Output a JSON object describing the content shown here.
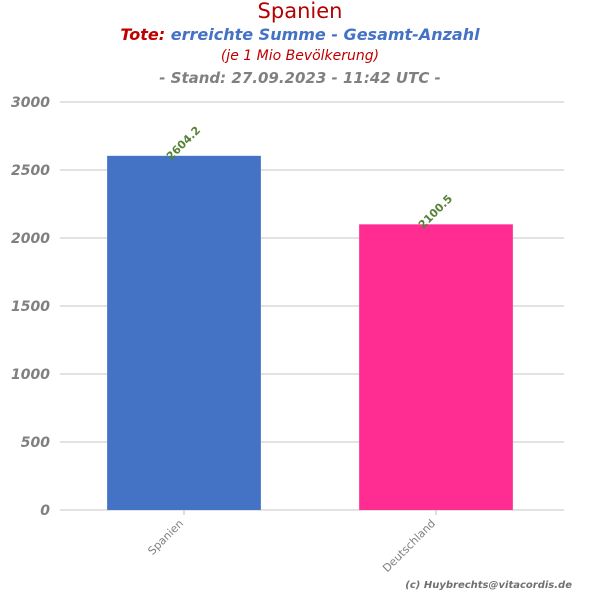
{
  "header": {
    "title": "Spanien",
    "subtitle_prefix": "Tote:",
    "subtitle_main": "erreichte Summe - Gesamt-Anzahl",
    "subtitle_note": "(je 1 Mio Bevölkerung)",
    "stand": "- Stand: 27.09.2023 - 11:42 UTC -"
  },
  "credit": "(c) Huybrechts@vitacordis.de",
  "colors": {
    "Spanien": "#4472c4",
    "Deutschland": "#ff2d91",
    "value_label": "#548235",
    "grid": "#d9d9d9",
    "tick_text": "#808080"
  },
  "chart_data": {
    "type": "bar",
    "categories": [
      "Spanien",
      "Deutschland"
    ],
    "values": [
      2604.2,
      2100.5
    ],
    "value_labels": [
      "2604.2",
      "2100.5"
    ],
    "ylim": [
      0,
      3000
    ],
    "yticks": [
      0,
      500,
      1000,
      1500,
      2000,
      2500,
      3000
    ],
    "grid": true,
    "xlabel": "",
    "ylabel": ""
  }
}
